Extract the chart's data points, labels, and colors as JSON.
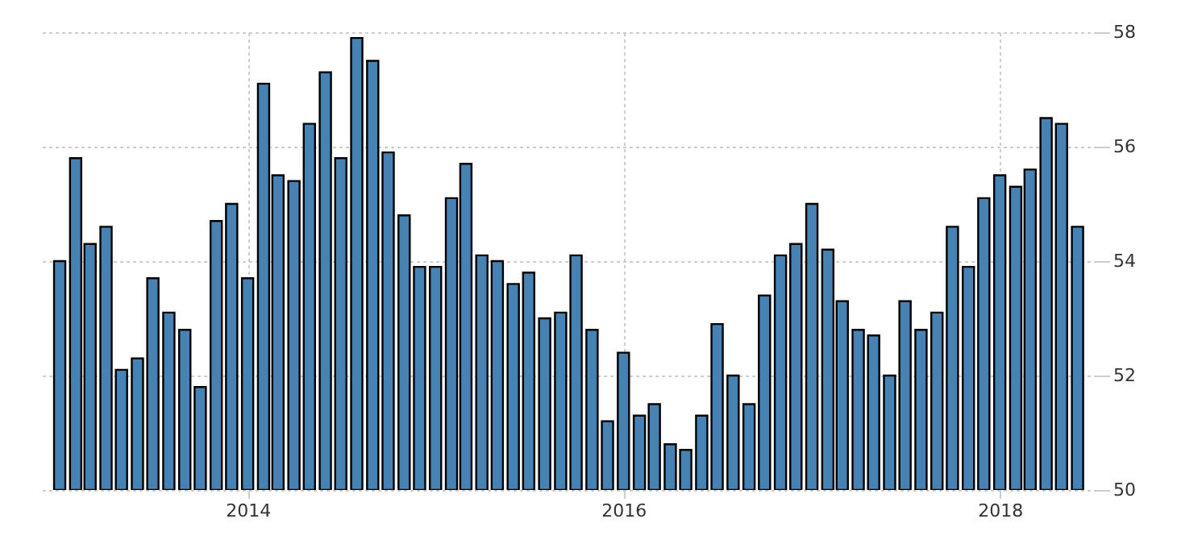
{
  "chart_data": {
    "type": "bar",
    "x": [
      "2013-01",
      "2013-02",
      "2013-03",
      "2013-04",
      "2013-05",
      "2013-06",
      "2013-07",
      "2013-08",
      "2013-09",
      "2013-10",
      "2013-11",
      "2013-12",
      "2014-01",
      "2014-02",
      "2014-03",
      "2014-04",
      "2014-05",
      "2014-06",
      "2014-07",
      "2014-08",
      "2014-09",
      "2014-10",
      "2014-11",
      "2014-12",
      "2015-01",
      "2015-02",
      "2015-03",
      "2015-04",
      "2015-05",
      "2015-06",
      "2015-07",
      "2015-08",
      "2015-09",
      "2015-10",
      "2015-11",
      "2015-12",
      "2016-01",
      "2016-02",
      "2016-03",
      "2016-04",
      "2016-05",
      "2016-06",
      "2016-07",
      "2016-08",
      "2016-09",
      "2016-10",
      "2016-11",
      "2016-12",
      "2017-01",
      "2017-02",
      "2017-03",
      "2017-04",
      "2017-05",
      "2017-06",
      "2017-07",
      "2017-08",
      "2017-09",
      "2017-10",
      "2017-11",
      "2017-12",
      "2018-01",
      "2018-02",
      "2018-03",
      "2018-04",
      "2018-05",
      "2018-06"
    ],
    "values": [
      54.0,
      55.8,
      54.3,
      54.6,
      52.1,
      52.3,
      53.7,
      53.1,
      52.8,
      51.8,
      54.7,
      55.0,
      53.7,
      57.1,
      55.5,
      55.4,
      56.4,
      57.3,
      55.8,
      57.9,
      57.5,
      55.9,
      54.8,
      53.9,
      53.9,
      55.1,
      55.7,
      54.1,
      54.0,
      53.6,
      53.8,
      53.0,
      53.1,
      54.1,
      52.8,
      51.2,
      52.4,
      51.3,
      51.5,
      50.8,
      50.7,
      51.3,
      52.9,
      52.0,
      51.5,
      53.4,
      54.1,
      54.3,
      55.0,
      54.2,
      53.3,
      52.8,
      52.7,
      52.0,
      53.3,
      52.8,
      53.1,
      54.6,
      53.9,
      55.1,
      55.5,
      55.3,
      55.6,
      56.5,
      56.4,
      54.6
    ],
    "color": "#4682b4",
    "xlim": [
      "2012-12-10",
      "2018-06-22"
    ],
    "xticks": [
      "2014",
      "2016",
      "2018"
    ],
    "ylim": [
      50,
      58
    ],
    "yticks": [
      50,
      52,
      54,
      56,
      58
    ],
    "grid": true
  }
}
